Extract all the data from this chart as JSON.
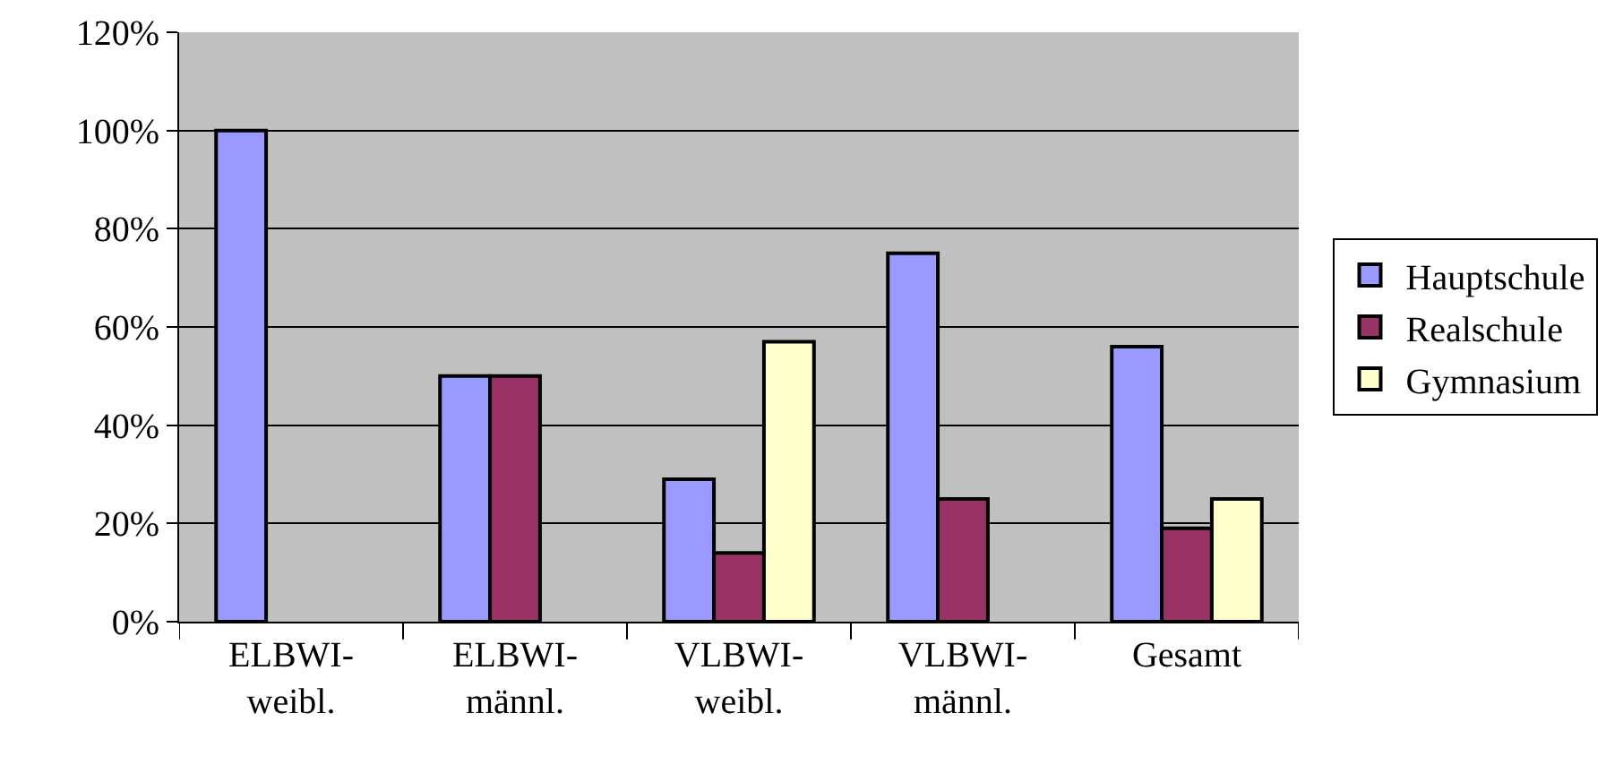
{
  "chart_data": {
    "type": "bar",
    "categories": [
      "ELBWI-\nweibl.",
      "ELBWI-\nmännl.",
      "VLBWI-\nweibl.",
      "VLBWI-\nmännl.",
      "Gesamt"
    ],
    "series": [
      {
        "name": "Hauptschule",
        "color": "#9999ff",
        "values": [
          100,
          50,
          29,
          75,
          56
        ]
      },
      {
        "name": "Realschule",
        "color": "#993366",
        "values": [
          null,
          50,
          14,
          25,
          19
        ]
      },
      {
        "name": "Gymnasium",
        "color": "#ffffcc",
        "values": [
          null,
          null,
          57,
          null,
          25
        ]
      }
    ],
    "ylim": [
      0,
      120
    ],
    "yticks": [
      {
        "value": 0,
        "label": "0%"
      },
      {
        "value": 20,
        "label": "20%"
      },
      {
        "value": 40,
        "label": "40%"
      },
      {
        "value": 60,
        "label": "60%"
      },
      {
        "value": 80,
        "label": "80%"
      },
      {
        "value": 100,
        "label": "100%"
      },
      {
        "value": 120,
        "label": "120%"
      }
    ],
    "grid": "y",
    "legend": "right"
  }
}
